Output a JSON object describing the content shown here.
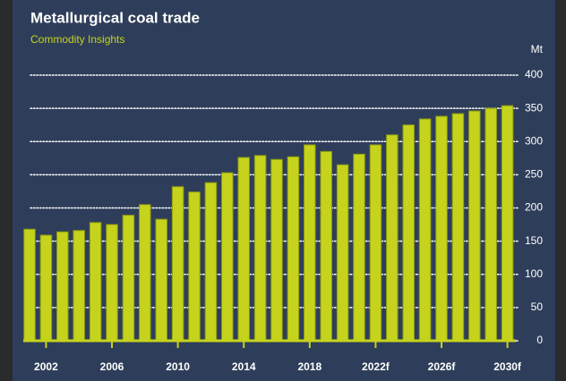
{
  "chart_data": {
    "type": "bar",
    "title": "Metallurgical coal trade",
    "subtitle": "Commodity Insights",
    "y_label": "Mt",
    "categories": [
      null,
      "2002",
      null,
      null,
      null,
      "2006",
      null,
      null,
      null,
      "2010",
      null,
      null,
      null,
      "2014",
      null,
      null,
      null,
      "2018",
      null,
      null,
      null,
      "2022f",
      null,
      null,
      null,
      "2026f",
      null,
      null,
      null,
      "2030f"
    ],
    "values": [
      168,
      159,
      164,
      166,
      178,
      175,
      189,
      205,
      183,
      232,
      224,
      238,
      253,
      276,
      279,
      273,
      277,
      295,
      285,
      265,
      281,
      295,
      310,
      325,
      334,
      338,
      342,
      346,
      350,
      354
    ],
    "color": "#c6d31c",
    "ylim": [
      0,
      400
    ],
    "yticks": [
      0,
      50,
      100,
      150,
      200,
      250,
      300,
      350,
      400
    ],
    "grid": true
  }
}
